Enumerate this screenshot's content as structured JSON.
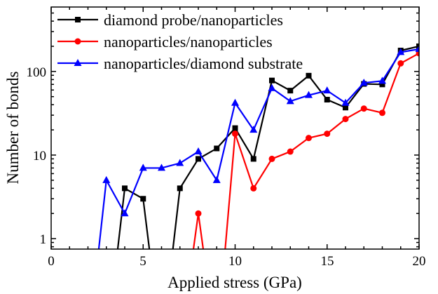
{
  "chart_data": {
    "type": "line",
    "title": "",
    "xlabel": "Applied stress (GPa)",
    "ylabel": "Number of bonds",
    "xlim": [
      0,
      20
    ],
    "ylim": [
      0.75,
      590
    ],
    "yscale": "log",
    "xticks": [
      "0",
      "5",
      "10",
      "15",
      "20"
    ],
    "yticks": [
      "1",
      "10",
      "100"
    ],
    "legend_position": "top-left",
    "series": [
      {
        "name": "diamond probe/nanoparticles",
        "color": "#000000",
        "marker": "square",
        "x": [
          3,
          4,
          5,
          6,
          7,
          8,
          9,
          10,
          11,
          12,
          13,
          14,
          15,
          16,
          17,
          18,
          19,
          20
        ],
        "values": [
          0,
          4,
          3,
          0,
          4,
          9,
          12,
          21,
          9,
          78,
          59,
          89,
          46,
          37,
          71,
          70,
          178,
          200
        ]
      },
      {
        "name": "nanoparticles/nanoparticles",
        "color": "#ff0000",
        "marker": "circle",
        "x": [
          7,
          8,
          9,
          10,
          11,
          12,
          13,
          14,
          15,
          16,
          17,
          18,
          19,
          20
        ],
        "values": [
          0,
          2,
          0,
          18,
          4,
          9,
          11,
          16,
          18,
          27,
          36,
          32,
          125,
          165
        ]
      },
      {
        "name": "nanoparticles/diamond substrate",
        "color": "#0000ff",
        "marker": "triangle",
        "x": [
          2,
          3,
          4,
          5,
          6,
          7,
          8,
          9,
          10,
          11,
          12,
          13,
          14,
          15,
          16,
          17,
          18,
          19,
          20
        ],
        "values": [
          0,
          5,
          2,
          7,
          7,
          8,
          11,
          5,
          42,
          20,
          63,
          44,
          52,
          59,
          42,
          73,
          77,
          170,
          185
        ]
      }
    ]
  }
}
